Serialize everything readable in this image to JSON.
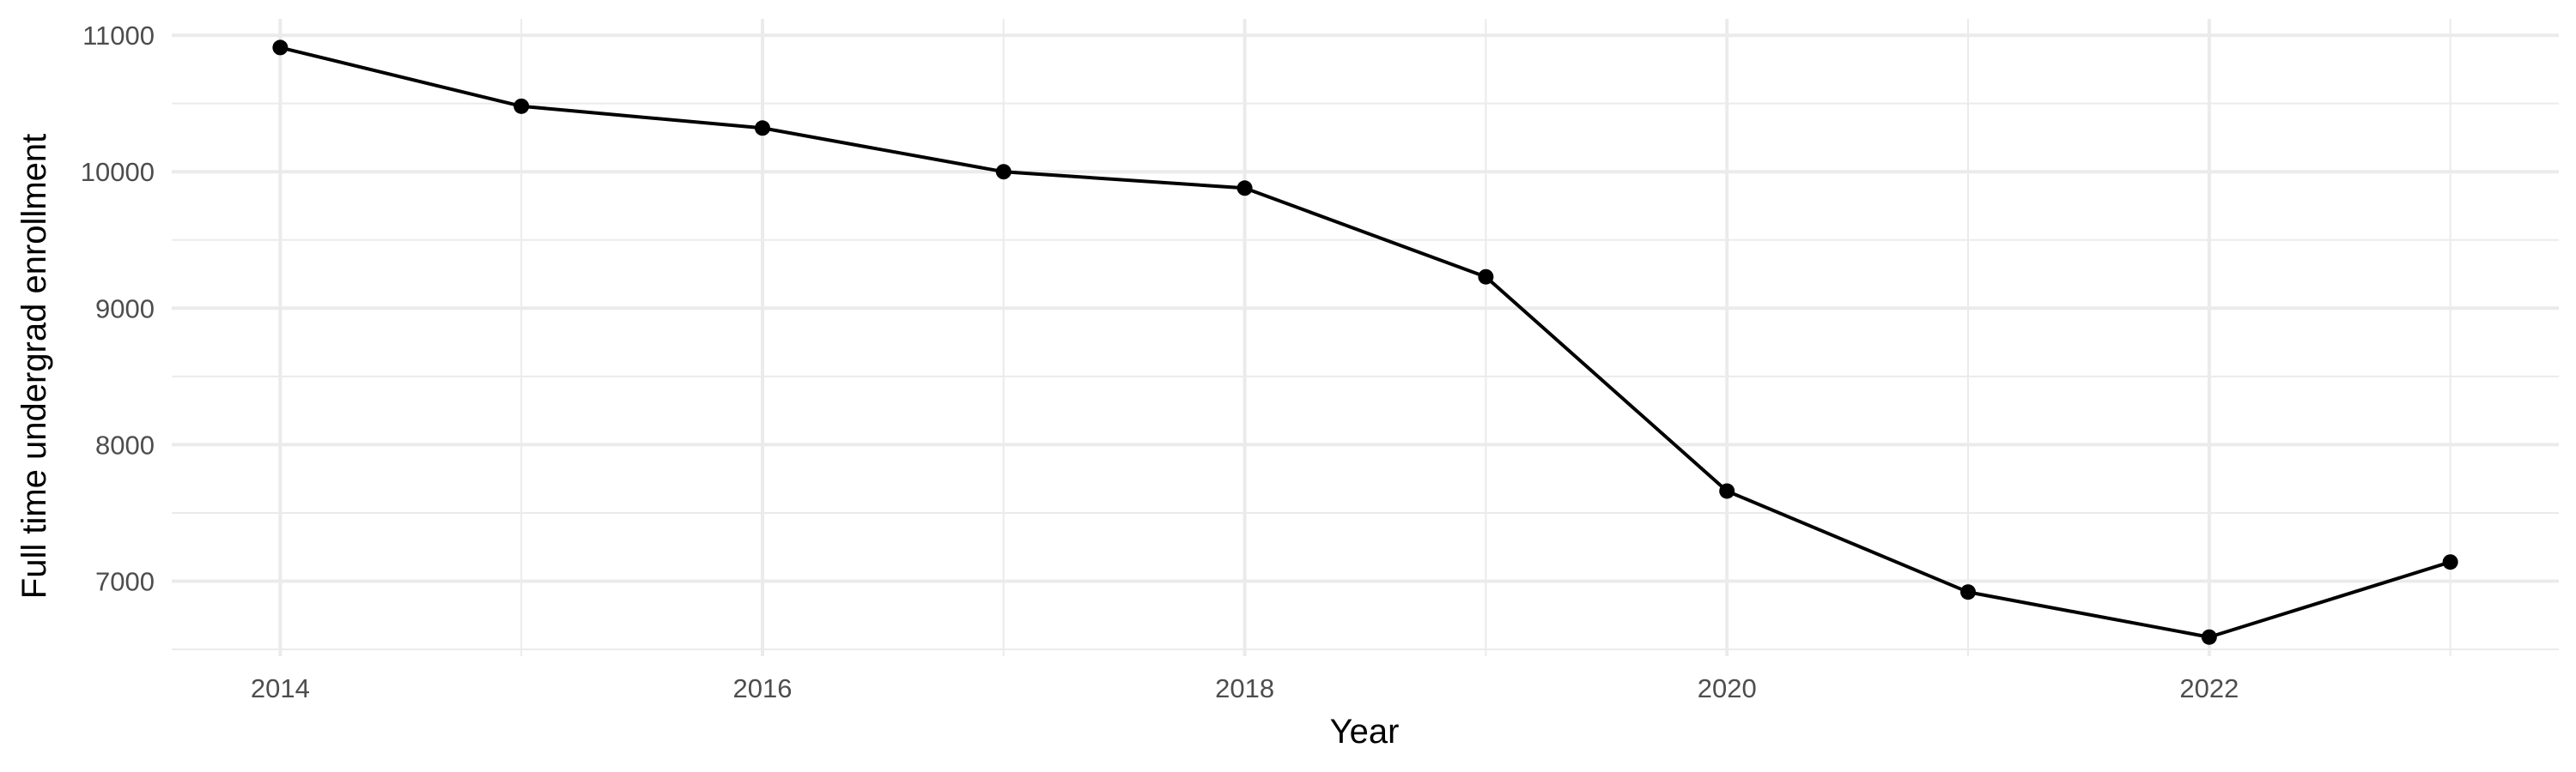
{
  "chart_data": {
    "type": "line",
    "xlabel": "Year",
    "ylabel": "Full time undergrad enrollment",
    "x": [
      2014,
      2015,
      2016,
      2017,
      2018,
      2019,
      2020,
      2021,
      2022,
      2023
    ],
    "series": [
      {
        "values": [
          10910,
          10480,
          10320,
          10000,
          9880,
          9230,
          7660,
          6920,
          6590,
          7140
        ]
      }
    ],
    "xlim": [
      2013.55,
      2023.45
    ],
    "ylim": [
      6450,
      11120
    ],
    "x_ticks": [
      2014,
      2016,
      2018,
      2020,
      2022
    ],
    "x_tick_labels": [
      "2014",
      "2016",
      "2018",
      "2020",
      "2022"
    ],
    "y_ticks": [
      7000,
      8000,
      9000,
      10000,
      11000
    ],
    "y_tick_labels": [
      "7000",
      "8000",
      "9000",
      "10000",
      "11000"
    ],
    "grid": true,
    "line_color": "#000000",
    "grid_color": "#ebebeb"
  }
}
